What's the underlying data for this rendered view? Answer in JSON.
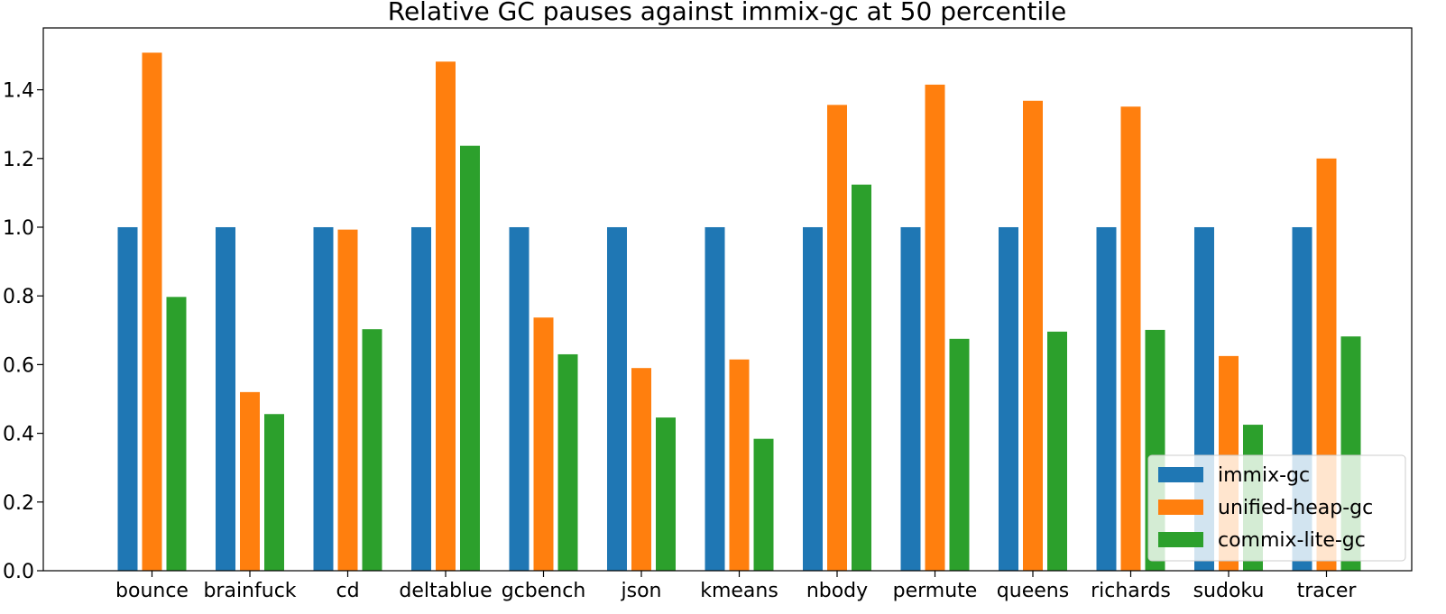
{
  "chart_data": {
    "type": "bar",
    "title": "Relative GC pauses against immix-gc at 50 percentile",
    "xlabel": "",
    "ylabel": "",
    "ylim": [
      0,
      1.58
    ],
    "yticks": [
      "0.0",
      "0.2",
      "0.4",
      "0.6",
      "0.8",
      "1.0",
      "1.2",
      "1.4"
    ],
    "categories": [
      "bounce",
      "brainfuck",
      "cd",
      "deltablue",
      "gcbench",
      "json",
      "kmeans",
      "nbody",
      "permute",
      "queens",
      "richards",
      "sudoku",
      "tracer"
    ],
    "series": [
      {
        "name": "immix-gc",
        "color": "#1f77b4",
        "values": [
          1.0,
          1.0,
          1.0,
          1.0,
          1.0,
          1.0,
          1.0,
          1.0,
          1.0,
          1.0,
          1.0,
          1.0,
          1.0
        ]
      },
      {
        "name": "unified-heap-gc",
        "color": "#ff7f0e",
        "values": [
          1.508,
          0.52,
          0.993,
          1.482,
          0.737,
          0.59,
          0.615,
          1.356,
          1.415,
          1.368,
          1.351,
          0.625,
          1.2
        ]
      },
      {
        "name": "commix-lite-gc",
        "color": "#2ca02c",
        "values": [
          0.797,
          0.456,
          0.703,
          1.237,
          0.63,
          0.446,
          0.384,
          1.124,
          0.675,
          0.696,
          0.701,
          0.425,
          0.682
        ]
      }
    ],
    "grid": false,
    "legend": "bottom-right"
  }
}
